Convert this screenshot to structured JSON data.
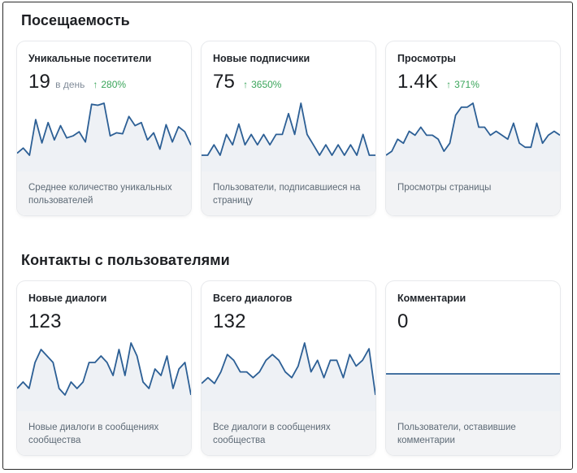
{
  "sections": {
    "attendance": {
      "title": "Посещаемость",
      "cards": [
        {
          "title": "Уникальные посетители",
          "value": "19",
          "unit": "в день",
          "delta": "280%",
          "description": "Среднее количество уникальных пользователей",
          "chart_points": [
            40,
            45,
            38,
            73,
            50,
            70,
            53,
            67,
            55,
            57,
            61,
            51,
            88,
            87,
            89,
            57,
            60,
            59,
            76,
            67,
            70,
            53,
            60,
            44,
            68,
            51,
            66,
            61,
            48
          ]
        },
        {
          "title": "Новые подписчики",
          "value": "75",
          "unit": "",
          "delta": "3650%",
          "description": "Пользователи, подписавшиеся на страницу",
          "chart_points": [
            1,
            1,
            2,
            1,
            3,
            2,
            4,
            2,
            3,
            2,
            3,
            2,
            3,
            3,
            5,
            3,
            6,
            3,
            2,
            1,
            2,
            1,
            2,
            1,
            2,
            1,
            3,
            1,
            1
          ]
        },
        {
          "title": "Просмотры",
          "value": "1.4K",
          "unit": "",
          "delta": "371%",
          "description": "Просмотры страницы",
          "chart_points": [
            2,
            3,
            6,
            5,
            8,
            7,
            9,
            7,
            7,
            6,
            3,
            5,
            12,
            14,
            14,
            15,
            9,
            9,
            7,
            8,
            7,
            6,
            10,
            5,
            4,
            4,
            10,
            5,
            7,
            8,
            7
          ]
        }
      ]
    },
    "contacts": {
      "title": "Контакты с пользователями",
      "cards": [
        {
          "title": "Новые диалоги",
          "value": "123",
          "unit": "",
          "delta": "",
          "description": "Новые диалоги в сообщениях сообщества",
          "chart_points": [
            3,
            4,
            3,
            7,
            9,
            8,
            7,
            3,
            2,
            4,
            3,
            4,
            7,
            7,
            8,
            7,
            5,
            9,
            5,
            10,
            8,
            4,
            3,
            6,
            5,
            8,
            3,
            6,
            7,
            2
          ]
        },
        {
          "title": "Всего диалогов",
          "value": "132",
          "unit": "",
          "delta": "",
          "description": "Все диалоги в сообщениях сообщества",
          "chart_points": [
            3,
            4,
            3,
            5,
            8,
            7,
            5,
            5,
            4,
            5,
            7,
            8,
            7,
            5,
            4,
            6,
            10,
            5,
            7,
            4,
            7,
            7,
            4,
            8,
            6,
            7,
            9,
            1
          ]
        },
        {
          "title": "Комментарии",
          "value": "0",
          "unit": "",
          "delta": "",
          "description": "Пользователи, оставившие комментарии",
          "chart_points": [
            0,
            0,
            0,
            0,
            0,
            0,
            0,
            0,
            0,
            0,
            0,
            0,
            0,
            0,
            0,
            0,
            0,
            0,
            0,
            0
          ]
        }
      ]
    }
  },
  "icons": {
    "delta": "arrow-up-icon"
  },
  "colors": {
    "line": "#2c5f95",
    "area": "#eef1f5",
    "positive": "#3aa55a"
  }
}
